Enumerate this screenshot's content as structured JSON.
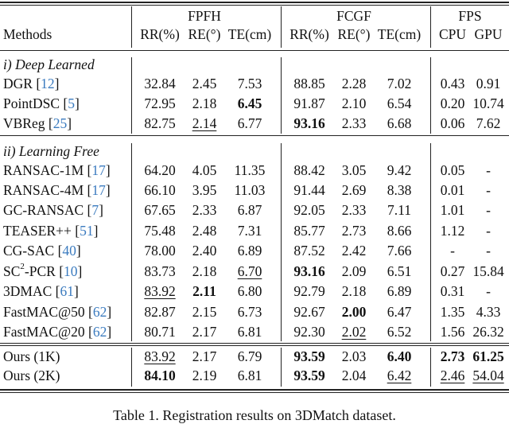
{
  "table": {
    "header": {
      "methods_label": "Methods",
      "groups": [
        {
          "name": "FPFH",
          "columns": [
            "RR(%)",
            "RE(°)",
            "TE(cm)"
          ]
        },
        {
          "name": "FCGF",
          "columns": [
            "RR(%)",
            "RE(°)",
            "TE(cm)"
          ]
        },
        {
          "name": "FPS",
          "columns": [
            "CPU",
            "GPU"
          ]
        }
      ]
    },
    "sections": [
      {
        "title": "i) Deep Learned",
        "rows": [
          {
            "method": "DGR",
            "cite": "12",
            "values": [
              "32.84",
              "2.45",
              "7.53",
              "88.85",
              "2.28",
              "7.02",
              "0.43",
              "0.91"
            ],
            "bold": [],
            "underline": []
          },
          {
            "method": "PointDSC",
            "cite": "5",
            "values": [
              "72.95",
              "2.18",
              "6.45",
              "91.87",
              "2.10",
              "6.54",
              "0.20",
              "10.74"
            ],
            "bold": [
              2
            ],
            "underline": []
          },
          {
            "method": "VBReg",
            "cite": "25",
            "values": [
              "82.75",
              "2.14",
              "6.77",
              "93.16",
              "2.33",
              "6.68",
              "0.06",
              "7.62"
            ],
            "bold": [
              3
            ],
            "underline": [
              1
            ]
          }
        ]
      },
      {
        "title": "ii) Learning Free",
        "rows": [
          {
            "method": "RANSAC-1M",
            "cite": "17",
            "values": [
              "64.20",
              "4.05",
              "11.35",
              "88.42",
              "3.05",
              "9.42",
              "0.05",
              "-"
            ],
            "bold": [],
            "underline": []
          },
          {
            "method": "RANSAC-4M",
            "cite": "17",
            "values": [
              "66.10",
              "3.95",
              "11.03",
              "91.44",
              "2.69",
              "8.38",
              "0.01",
              "-"
            ],
            "bold": [],
            "underline": []
          },
          {
            "method": "GC-RANSAC",
            "cite": "7",
            "values": [
              "67.65",
              "2.33",
              "6.87",
              "92.05",
              "2.33",
              "7.11",
              "1.01",
              "-"
            ],
            "bold": [],
            "underline": []
          },
          {
            "method": "TEASER++",
            "cite": "51",
            "values": [
              "75.48",
              "2.48",
              "7.31",
              "85.77",
              "2.73",
              "8.66",
              "1.12",
              "-"
            ],
            "bold": [],
            "underline": []
          },
          {
            "method": "CG-SAC",
            "cite": "40",
            "values": [
              "78.00",
              "2.40",
              "6.89",
              "87.52",
              "2.42",
              "7.66",
              "-",
              "-"
            ],
            "bold": [],
            "underline": []
          },
          {
            "method": "SC",
            "method_sup": "2",
            "method_suffix": "-PCR",
            "cite": "10",
            "values": [
              "83.73",
              "2.18",
              "6.70",
              "93.16",
              "2.09",
              "6.51",
              "0.27",
              "15.84"
            ],
            "bold": [
              3
            ],
            "underline": [
              2
            ]
          },
          {
            "method": "3DMAC",
            "cite": "61",
            "values": [
              "83.92",
              "2.11",
              "6.80",
              "92.79",
              "2.18",
              "6.89",
              "0.31",
              "-"
            ],
            "bold": [
              1
            ],
            "underline": [
              0
            ]
          },
          {
            "method": "FastMAC@50",
            "cite": "62",
            "values": [
              "82.87",
              "2.15",
              "6.73",
              "92.67",
              "2.00",
              "6.47",
              "1.35",
              "4.33"
            ],
            "bold": [
              4
            ],
            "underline": []
          },
          {
            "method": "FastMAC@20",
            "cite": "62",
            "values": [
              "80.71",
              "2.17",
              "6.81",
              "92.30",
              "2.02",
              "6.52",
              "1.56",
              "26.32"
            ],
            "bold": [],
            "underline": [
              4
            ]
          }
        ]
      },
      {
        "title": "",
        "rows": [
          {
            "method": "Ours (1K)",
            "cite": "",
            "values": [
              "83.92",
              "2.17",
              "6.79",
              "93.59",
              "2.03",
              "6.40",
              "2.73",
              "61.25"
            ],
            "bold": [
              3,
              5,
              6,
              7
            ],
            "underline": [
              0
            ]
          },
          {
            "method": "Ours (2K)",
            "cite": "",
            "values": [
              "84.10",
              "2.19",
              "6.81",
              "93.59",
              "2.04",
              "6.42",
              "2.46",
              "54.04"
            ],
            "bold": [
              0,
              3
            ],
            "underline": [
              5,
              6,
              7
            ]
          }
        ]
      }
    ]
  },
  "caption": "Table 1. Registration results on 3DMatch dataset.",
  "colors": {
    "citation": "#3b7bbf",
    "text": "#111111",
    "rule": "#222222"
  }
}
